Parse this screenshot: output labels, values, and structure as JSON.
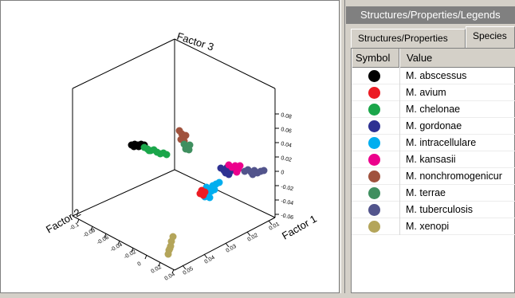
{
  "plot": {
    "axis_labels": {
      "factor1": "Factor 1",
      "factor2": "Factor 2",
      "factor3": "Factor 3"
    },
    "factor3_ticks": [
      "0.08",
      "0.06",
      "0.04",
      "0.02",
      "0",
      "-0.02",
      "-0.04",
      "-0.06"
    ],
    "factor1_ticks": [
      "0.01",
      "0.02",
      "0.03",
      "0.04",
      "0.05"
    ],
    "factor2_ticks": [
      "-0.1",
      "-0.08",
      "-0.06",
      "-0.04",
      "-0.02",
      "0",
      "0.02",
      "0.04"
    ]
  },
  "legend": {
    "title": "Structures/Properties/Legends",
    "tabs": [
      {
        "label": "Structures/Properties"
      },
      {
        "label": "Species"
      }
    ],
    "columns": {
      "symbol": "Symbol",
      "value": "Value"
    },
    "rows": [
      {
        "value": "M. abscessus",
        "color": "#000000"
      },
      {
        "value": "M. avium",
        "color": "#ec1c24"
      },
      {
        "value": "M. chelonae",
        "color": "#1aa64a"
      },
      {
        "value": "M. gordonae",
        "color": "#2e3192"
      },
      {
        "value": "M. intracellulare",
        "color": "#00aeef"
      },
      {
        "value": "M. kansasii",
        "color": "#ec008c"
      },
      {
        "value": "M. nonchromogenicur",
        "color": "#a0523d"
      },
      {
        "value": "M. terrae",
        "color": "#3f8f5f"
      },
      {
        "value": "M. tuberculosis",
        "color": "#52548c"
      },
      {
        "value": "M. xenopi",
        "color": "#b4a55a"
      }
    ]
  }
}
